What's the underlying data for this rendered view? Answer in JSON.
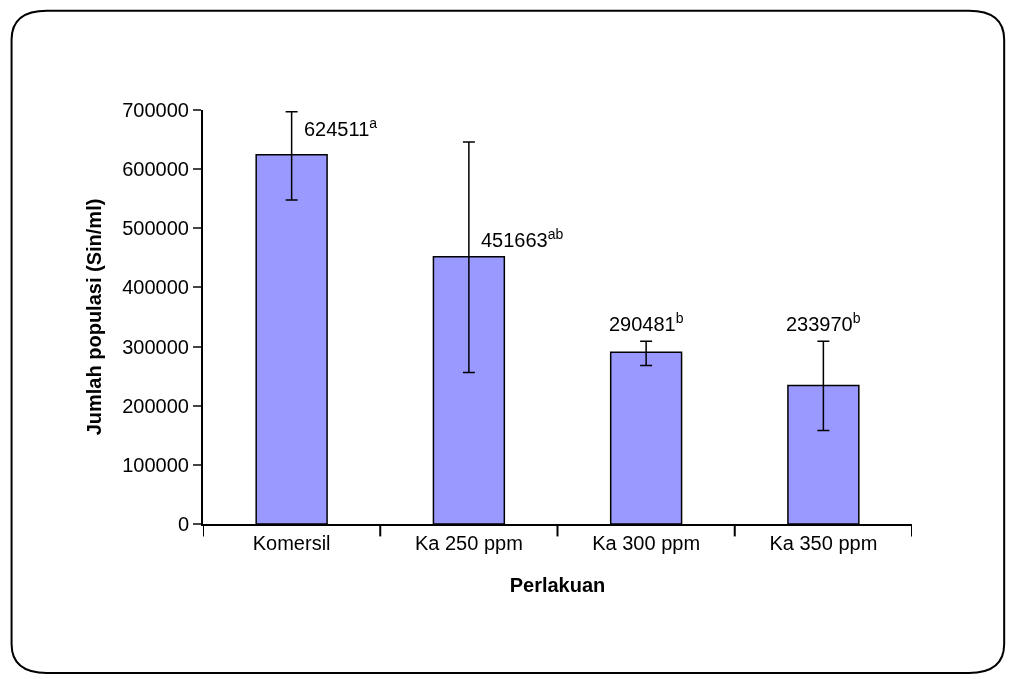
{
  "chart_data": {
    "type": "bar",
    "xlabel": "Perlakuan",
    "ylabel": "Jumlah populasi (Sin/ml)",
    "categories": [
      "Komersil",
      "Ka 250 ppm",
      "Ka 300 ppm",
      "Ka 350 ppm"
    ],
    "values": [
      624511,
      451663,
      290481,
      233970
    ],
    "errors": [
      [
        548000,
        697000
      ],
      [
        256000,
        646000
      ],
      [
        268000,
        309000
      ],
      [
        158000,
        309000
      ]
    ],
    "value_labels": [
      "624511$^{a}$",
      "451663$^{ab}$",
      "290481$^{b}$",
      "233970$^{b}$"
    ],
    "color": "#9999ff",
    "ylim": [
      0,
      700000
    ],
    "yticks": [
      0,
      100000,
      200000,
      300000,
      400000,
      500000,
      600000,
      700000
    ],
    "legend": false
  }
}
